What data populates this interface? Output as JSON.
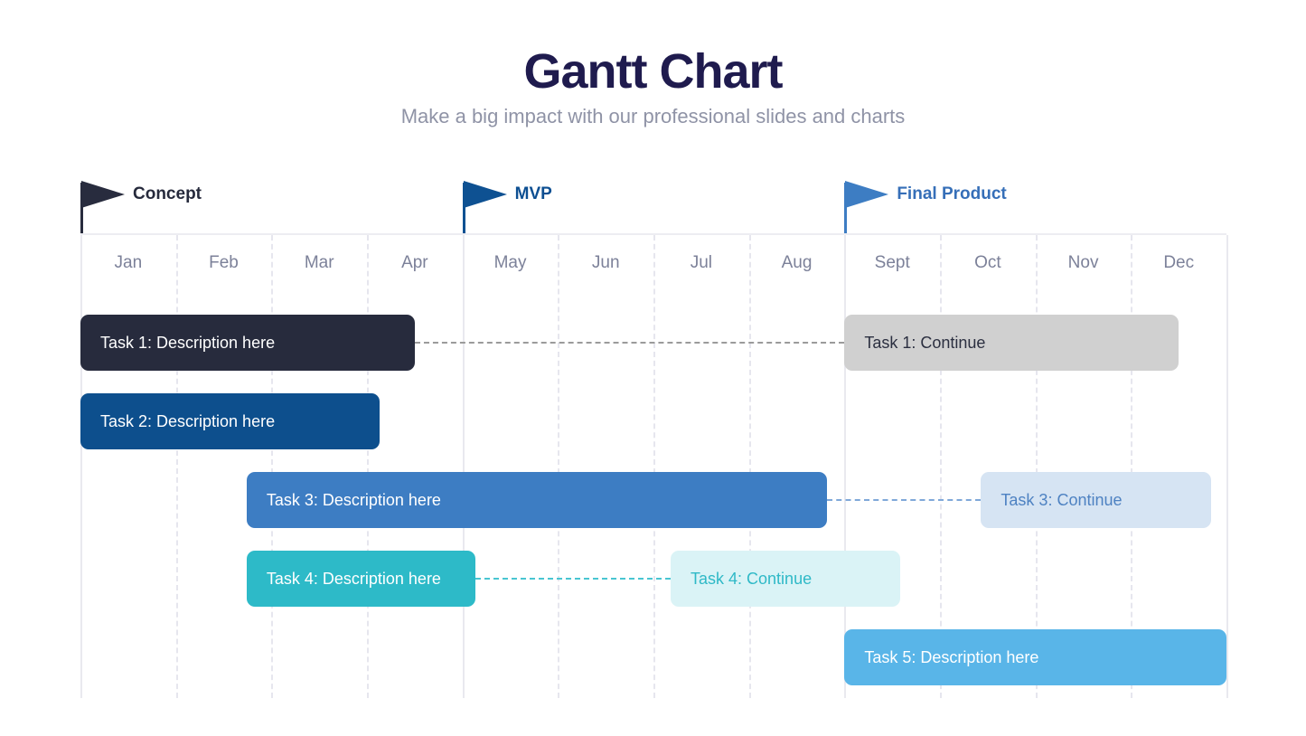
{
  "header": {
    "title": "Gantt Chart",
    "subtitle": "Make a big impact with our professional slides and charts",
    "title_color": "#1f1b4e",
    "subtitle_color": "#8f93a6"
  },
  "chart_data": {
    "type": "gantt",
    "title": "Gantt Chart",
    "months": [
      "Jan",
      "Feb",
      "Mar",
      "Apr",
      "May",
      "Jun",
      "Jul",
      "Aug",
      "Sept",
      "Oct",
      "Nov",
      "Dec"
    ],
    "axis": {
      "months_total": 12,
      "month_label_color": "#7c8199",
      "grid_dashed_color": "#e6e6ee",
      "grid_solid_color": "#e9e9ef",
      "solid_boundaries_at_months": [
        0,
        4,
        8,
        12
      ]
    },
    "milestones": [
      {
        "label": "Concept",
        "month": 0,
        "flag_color": "#282c3e",
        "label_color": "#262a3c"
      },
      {
        "label": "MVP",
        "month": 4,
        "flag_color": "#0e5192",
        "label_color": "#0d4f92"
      },
      {
        "label": "Final Product",
        "month": 8,
        "flag_color": "#3d7dc3",
        "label_color": "#366fb8"
      }
    ],
    "tasks": [
      {
        "row": 0,
        "label": "Task 1: Description here",
        "start": 0,
        "end": 3.5,
        "bar_color": "#272b3d",
        "text_color": "#ffffff",
        "connector_color": "#9b9b9b",
        "continuation": {
          "label": "Task 1: Continue",
          "start": 8,
          "end": 11.5,
          "bar_color": "#d0d0d0",
          "text_color": "#2b2f40"
        }
      },
      {
        "row": 1,
        "label": "Task 2: Description here",
        "start": 0,
        "end": 3.13,
        "bar_color": "#0d4f8d",
        "text_color": "#ffffff",
        "connector_color": null,
        "continuation": null
      },
      {
        "row": 2,
        "label": "Task 3: Description here",
        "start": 1.74,
        "end": 7.82,
        "bar_color": "#3d7dc3",
        "text_color": "#ffffff",
        "connector_color": "#7fa8d9",
        "continuation": {
          "label": "Task 3: Continue",
          "start": 9.43,
          "end": 11.84,
          "bar_color": "#d6e4f3",
          "text_color": "#4e82c2"
        }
      },
      {
        "row": 3,
        "label": "Task 4: Description here",
        "start": 1.74,
        "end": 4.14,
        "bar_color": "#2dbac8",
        "text_color": "#ffffff",
        "connector_color": "#49c5d2",
        "continuation": {
          "label": "Task 4: Continue",
          "start": 6.18,
          "end": 8.58,
          "bar_color": "#daf3f6",
          "text_color": "#2fb9c7"
        }
      },
      {
        "row": 4,
        "label": "Task 5: Description here",
        "start": 8,
        "end": 12,
        "bar_color": "#59b5e8",
        "text_color": "#ffffff",
        "connector_color": null,
        "continuation": null
      }
    ]
  }
}
